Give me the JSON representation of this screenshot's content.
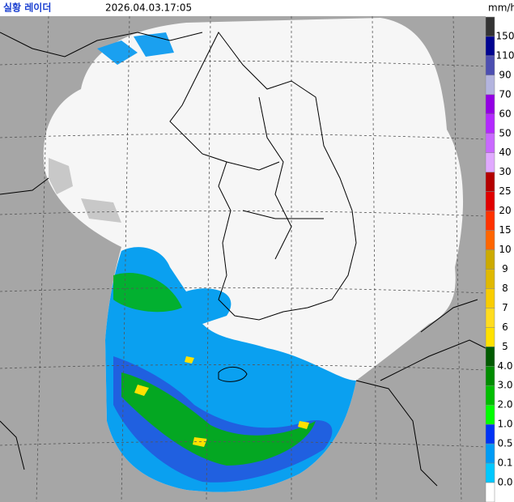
{
  "header": {
    "title": "실황 레이더",
    "timestamp": "2026.04.03.17:05",
    "unit": "mm/h"
  },
  "legend": {
    "labels": [
      "150",
      "110",
      "90",
      "70",
      "60",
      "50",
      "40",
      "30",
      "25",
      "20",
      "15",
      "10",
      "9",
      "8",
      "7",
      "6",
      "5",
      "4.0",
      "3.0",
      "2.0",
      "1.0",
      "0.5",
      "0.1",
      "0.0"
    ],
    "colors": [
      "#333333",
      "#000390",
      "#4c4eb1",
      "#b3b4de",
      "#9300e4",
      "#b329ff",
      "#c969ff",
      "#e0a9ff",
      "#b40000",
      "#e00000",
      "#ff3200",
      "#ff6600",
      "#ccaa00",
      "#e0b900",
      "#f9cd00",
      "#ffdc1f",
      "#ffe100",
      "#005a00",
      "#008c00",
      "#00be00",
      "#00ff00",
      "#0033f5",
      "#009bf5",
      "#00c8ff",
      "#ffffff"
    ]
  }
}
